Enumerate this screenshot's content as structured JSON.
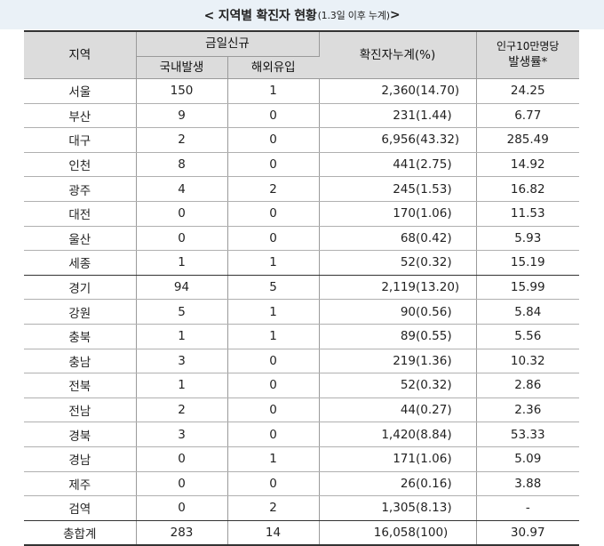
{
  "title": {
    "main": "< 지역별 확진자 현황",
    "sub": "(1.3일 이후 누계)",
    "close": " >"
  },
  "headers": {
    "region": "지역",
    "today_new": "금일신규",
    "domestic": "국내발생",
    "imported": "해외유입",
    "cumulative": "확진자누계(%)",
    "per100k_line1": "인구10만명당",
    "per100k_line2": "발생률*"
  },
  "rows": [
    {
      "region": "서울",
      "domestic": "150",
      "imported": "1",
      "cumulative": "2,360",
      "percent": "(14.70)",
      "rate": "24.25"
    },
    {
      "region": "부산",
      "domestic": "9",
      "imported": "0",
      "cumulative": "231",
      "percent": "(1.44)",
      "rate": "6.77"
    },
    {
      "region": "대구",
      "domestic": "2",
      "imported": "0",
      "cumulative": "6,956",
      "percent": "(43.32)",
      "rate": "285.49"
    },
    {
      "region": "인천",
      "domestic": "8",
      "imported": "0",
      "cumulative": "441",
      "percent": "(2.75)",
      "rate": "14.92"
    },
    {
      "region": "광주",
      "domestic": "4",
      "imported": "2",
      "cumulative": "245",
      "percent": "(1.53)",
      "rate": "16.82"
    },
    {
      "region": "대전",
      "domestic": "0",
      "imported": "0",
      "cumulative": "170",
      "percent": "(1.06)",
      "rate": "11.53"
    },
    {
      "region": "울산",
      "domestic": "0",
      "imported": "0",
      "cumulative": "68",
      "percent": "(0.42)",
      "rate": "5.93"
    },
    {
      "region": "세종",
      "domestic": "1",
      "imported": "1",
      "cumulative": "52",
      "percent": "(0.32)",
      "rate": "15.19"
    },
    {
      "region": "경기",
      "domestic": "94",
      "imported": "5",
      "cumulative": "2,119",
      "percent": "(13.20)",
      "rate": "15.99"
    },
    {
      "region": "강원",
      "domestic": "5",
      "imported": "1",
      "cumulative": "90",
      "percent": "(0.56)",
      "rate": "5.84"
    },
    {
      "region": "충북",
      "domestic": "1",
      "imported": "1",
      "cumulative": "89",
      "percent": "(0.55)",
      "rate": "5.56"
    },
    {
      "region": "충남",
      "domestic": "3",
      "imported": "0",
      "cumulative": "219",
      "percent": "(1.36)",
      "rate": "10.32"
    },
    {
      "region": "전북",
      "domestic": "1",
      "imported": "0",
      "cumulative": "52",
      "percent": "(0.32)",
      "rate": "2.86"
    },
    {
      "region": "전남",
      "domestic": "2",
      "imported": "0",
      "cumulative": "44",
      "percent": "(0.27)",
      "rate": "2.36"
    },
    {
      "region": "경북",
      "domestic": "3",
      "imported": "0",
      "cumulative": "1,420",
      "percent": "(8.84)",
      "rate": "53.33"
    },
    {
      "region": "경남",
      "domestic": "0",
      "imported": "1",
      "cumulative": "171",
      "percent": "(1.06)",
      "rate": "5.09"
    },
    {
      "region": "제주",
      "domestic": "0",
      "imported": "0",
      "cumulative": "26",
      "percent": "(0.16)",
      "rate": "3.88"
    },
    {
      "region": "검역",
      "domestic": "0",
      "imported": "2",
      "cumulative": "1,305",
      "percent": "(8.13)",
      "rate": "-"
    },
    {
      "region": "총합계",
      "domestic": "283",
      "imported": "14",
      "cumulative": "16,058",
      "percent": "(100)",
      "rate": "30.97"
    }
  ],
  "colors": {
    "title_bg": "#eaf1f7",
    "header_bg": "#dcdcdc"
  }
}
